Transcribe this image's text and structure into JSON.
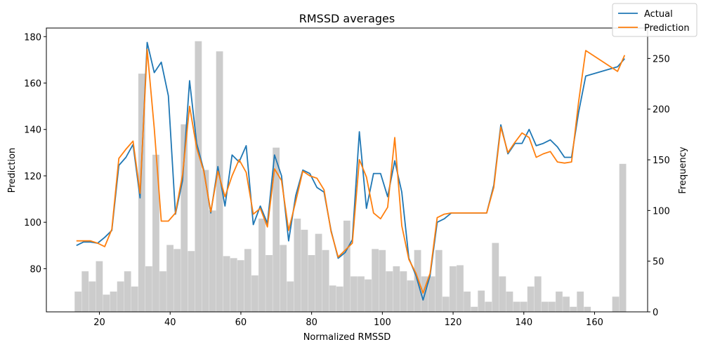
{
  "chart_data": {
    "type": "line",
    "title": "RMSSD averages",
    "xlabel": "Normalized RMSSD",
    "ylabel": "Prediction",
    "y2label": "Frequency",
    "xlim": [
      5,
      175
    ],
    "ylim": [
      61.4,
      183.7
    ],
    "y2lim": [
      0,
      280
    ],
    "xticks": [
      20,
      40,
      60,
      80,
      100,
      120,
      140,
      160
    ],
    "yticks": [
      80,
      100,
      120,
      140,
      160,
      180
    ],
    "y2ticks": [
      0,
      50,
      100,
      150,
      200,
      250
    ],
    "grid": false,
    "legend": "top-right",
    "series": [
      {
        "name": "Actual",
        "color": "#1f77b4",
        "points": [
          [
            13.5,
            90
          ],
          [
            15.5,
            91.5
          ],
          [
            17.5,
            91.5
          ],
          [
            19.5,
            91
          ],
          [
            21.5,
            93.5
          ],
          [
            23.5,
            96.5
          ],
          [
            25.5,
            124.5
          ],
          [
            27.5,
            128
          ],
          [
            29.5,
            133.5
          ],
          [
            31.5,
            110.5
          ],
          [
            33.5,
            177.5
          ],
          [
            35.5,
            164.5
          ],
          [
            37.5,
            169
          ],
          [
            39.5,
            154.5
          ],
          [
            41.5,
            103.5
          ],
          [
            43.5,
            118
          ],
          [
            45.5,
            161
          ],
          [
            47.5,
            134
          ],
          [
            49.5,
            122.5
          ],
          [
            51.5,
            104
          ],
          [
            53.5,
            124
          ],
          [
            55.5,
            107
          ],
          [
            57.5,
            129
          ],
          [
            59.5,
            126
          ],
          [
            61.5,
            133
          ],
          [
            63.5,
            99
          ],
          [
            65.5,
            107
          ],
          [
            67.5,
            99.5
          ],
          [
            69.5,
            129
          ],
          [
            71.5,
            120
          ],
          [
            73.5,
            92
          ],
          [
            75.5,
            111.5
          ],
          [
            77.5,
            122.5
          ],
          [
            79.5,
            121
          ],
          [
            81.5,
            115
          ],
          [
            83.5,
            113
          ],
          [
            85.5,
            96.5
          ],
          [
            87.5,
            84.5
          ],
          [
            89.5,
            87
          ],
          [
            91.5,
            92.5
          ],
          [
            93.5,
            139
          ],
          [
            95.5,
            106
          ],
          [
            97.5,
            121
          ],
          [
            99.5,
            121
          ],
          [
            101.5,
            111
          ],
          [
            103.5,
            126.5
          ],
          [
            105.5,
            113
          ],
          [
            107.5,
            84.5
          ],
          [
            109.5,
            77
          ],
          [
            111.5,
            66.5
          ],
          [
            113.5,
            77
          ],
          [
            115.5,
            100
          ],
          [
            117.5,
            101.5
          ],
          [
            119.5,
            104
          ],
          [
            121.5,
            104
          ],
          [
            123.5,
            104
          ],
          [
            125.5,
            104
          ],
          [
            127.5,
            104
          ],
          [
            129.5,
            104
          ],
          [
            131.5,
            116
          ],
          [
            133.5,
            142
          ],
          [
            135.5,
            129.5
          ],
          [
            137.5,
            134
          ],
          [
            139.5,
            134
          ],
          [
            141.5,
            140
          ],
          [
            143.5,
            133
          ],
          [
            145.5,
            134
          ],
          [
            147.5,
            135.5
          ],
          [
            149.5,
            132.5
          ],
          [
            151.5,
            128
          ],
          [
            153.5,
            128
          ],
          [
            155.5,
            147.5
          ],
          [
            157.5,
            163
          ],
          [
            166.5,
            167
          ],
          [
            168.5,
            170.5
          ]
        ]
      },
      {
        "name": "Prediction",
        "color": "#ff7f0e",
        "points": [
          [
            13.5,
            92
          ],
          [
            15.5,
            92
          ],
          [
            17.5,
            92
          ],
          [
            19.5,
            91
          ],
          [
            21.5,
            89.5
          ],
          [
            23.5,
            97
          ],
          [
            25.5,
            127.5
          ],
          [
            27.5,
            131.5
          ],
          [
            29.5,
            135
          ],
          [
            31.5,
            112.5
          ],
          [
            33.5,
            174.5
          ],
          [
            35.5,
            140.5
          ],
          [
            37.5,
            100.5
          ],
          [
            39.5,
            100.5
          ],
          [
            41.5,
            104
          ],
          [
            43.5,
            120.5
          ],
          [
            45.5,
            150
          ],
          [
            47.5,
            132
          ],
          [
            49.5,
            122
          ],
          [
            51.5,
            104.5
          ],
          [
            53.5,
            122
          ],
          [
            55.5,
            111
          ],
          [
            57.5,
            120
          ],
          [
            59.5,
            127
          ],
          [
            61.5,
            121.5
          ],
          [
            63.5,
            103.5
          ],
          [
            65.5,
            106
          ],
          [
            67.5,
            98
          ],
          [
            69.5,
            123
          ],
          [
            71.5,
            118
          ],
          [
            73.5,
            96.5
          ],
          [
            75.5,
            109
          ],
          [
            77.5,
            122
          ],
          [
            79.5,
            120
          ],
          [
            81.5,
            119
          ],
          [
            83.5,
            114
          ],
          [
            85.5,
            96
          ],
          [
            87.5,
            85
          ],
          [
            89.5,
            88
          ],
          [
            91.5,
            91
          ],
          [
            93.5,
            127
          ],
          [
            95.5,
            119.5
          ],
          [
            97.5,
            104
          ],
          [
            99.5,
            101.5
          ],
          [
            101.5,
            106.5
          ],
          [
            103.5,
            136.5
          ],
          [
            105.5,
            98.5
          ],
          [
            107.5,
            84
          ],
          [
            109.5,
            78
          ],
          [
            111.5,
            69.5
          ],
          [
            113.5,
            78
          ],
          [
            115.5,
            102
          ],
          [
            117.5,
            103.5
          ],
          [
            119.5,
            104
          ],
          [
            121.5,
            104
          ],
          [
            123.5,
            104
          ],
          [
            125.5,
            104
          ],
          [
            127.5,
            104
          ],
          [
            129.5,
            104
          ],
          [
            131.5,
            115
          ],
          [
            133.5,
            141
          ],
          [
            135.5,
            130
          ],
          [
            137.5,
            134.5
          ],
          [
            139.5,
            138.5
          ],
          [
            141.5,
            136.5
          ],
          [
            143.5,
            128
          ],
          [
            145.5,
            129.5
          ],
          [
            147.5,
            130.5
          ],
          [
            149.5,
            126
          ],
          [
            151.5,
            125.5
          ],
          [
            153.5,
            126
          ],
          [
            155.5,
            152
          ],
          [
            157.5,
            174
          ],
          [
            166.5,
            165
          ],
          [
            168.5,
            172
          ]
        ]
      }
    ],
    "histogram": {
      "color": "#cccccc",
      "bin_width": 2,
      "bins": [
        [
          13,
          20
        ],
        [
          15,
          40
        ],
        [
          17,
          30
        ],
        [
          19,
          50
        ],
        [
          21,
          17
        ],
        [
          23,
          20
        ],
        [
          25,
          30
        ],
        [
          27,
          40
        ],
        [
          29,
          25
        ],
        [
          31,
          235
        ],
        [
          33,
          45
        ],
        [
          35,
          155
        ],
        [
          37,
          40
        ],
        [
          39,
          66
        ],
        [
          41,
          62
        ],
        [
          43,
          185
        ],
        [
          45,
          60
        ],
        [
          47,
          267
        ],
        [
          49,
          140
        ],
        [
          51,
          100
        ],
        [
          53,
          257
        ],
        [
          55,
          55
        ],
        [
          57,
          53
        ],
        [
          59,
          51
        ],
        [
          61,
          62
        ],
        [
          63,
          36
        ],
        [
          65,
          92
        ],
        [
          67,
          56
        ],
        [
          69,
          162
        ],
        [
          71,
          66
        ],
        [
          73,
          30
        ],
        [
          75,
          92
        ],
        [
          77,
          81
        ],
        [
          79,
          56
        ],
        [
          81,
          77
        ],
        [
          83,
          61
        ],
        [
          85,
          26
        ],
        [
          87,
          25
        ],
        [
          89,
          90
        ],
        [
          91,
          35
        ],
        [
          93,
          35
        ],
        [
          95,
          32
        ],
        [
          97,
          62
        ],
        [
          99,
          61
        ],
        [
          101,
          40
        ],
        [
          103,
          45
        ],
        [
          105,
          40
        ],
        [
          107,
          31
        ],
        [
          109,
          61
        ],
        [
          111,
          35
        ],
        [
          113,
          35
        ],
        [
          115,
          61
        ],
        [
          117,
          15
        ],
        [
          119,
          45
        ],
        [
          121,
          46
        ],
        [
          123,
          20
        ],
        [
          125,
          5
        ],
        [
          127,
          21
        ],
        [
          129,
          10
        ],
        [
          131,
          68
        ],
        [
          133,
          35
        ],
        [
          135,
          20
        ],
        [
          137,
          10
        ],
        [
          139,
          10
        ],
        [
          141,
          25
        ],
        [
          143,
          35
        ],
        [
          145,
          10
        ],
        [
          147,
          10
        ],
        [
          149,
          20
        ],
        [
          151,
          15
        ],
        [
          153,
          5
        ],
        [
          155,
          20
        ],
        [
          157,
          5
        ],
        [
          159,
          0
        ],
        [
          161,
          0
        ],
        [
          163,
          0
        ],
        [
          165,
          15
        ],
        [
          167,
          146
        ]
      ]
    }
  }
}
